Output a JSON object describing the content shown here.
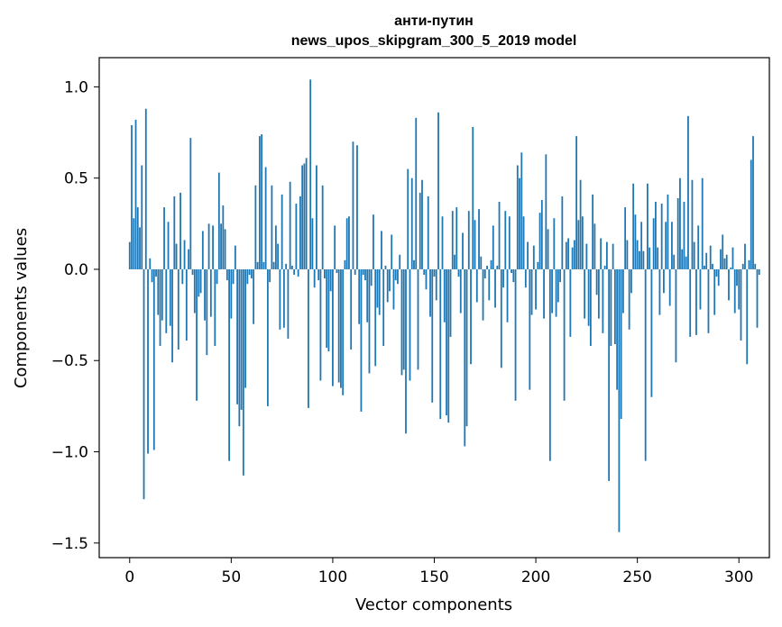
{
  "chart_data": {
    "type": "bar",
    "title_lines": [
      "анти-путин",
      "news_upos_skipgram_300_5_2019 model"
    ],
    "xlabel": "Vector components",
    "ylabel": "Components values",
    "xlim": [
      -15,
      315
    ],
    "ylim": [
      -1.58,
      1.16
    ],
    "x_ticks": [
      0,
      50,
      100,
      150,
      200,
      250,
      300
    ],
    "x_tick_labels": [
      "0",
      "50",
      "100",
      "150",
      "200",
      "250",
      "300"
    ],
    "y_ticks": [
      -1.5,
      -1.0,
      -0.5,
      0.0,
      0.5,
      1.0
    ],
    "y_tick_labels": [
      "−1.5",
      "−1.0",
      "−0.5",
      "0.0",
      "0.5",
      "1.0"
    ],
    "bar_color": "#1f77b4",
    "grid": false,
    "values": [
      0.15,
      0.79,
      0.28,
      0.82,
      0.34,
      0.23,
      0.57,
      -1.26,
      0.88,
      -1.01,
      0.06,
      -0.07,
      -0.99,
      -0.04,
      -0.25,
      -0.42,
      -0.28,
      0.34,
      -0.35,
      0.26,
      -0.31,
      -0.51,
      0.4,
      0.14,
      -0.44,
      0.42,
      -0.08,
      0.16,
      -0.39,
      0.11,
      0.72,
      -0.03,
      -0.24,
      -0.72,
      -0.15,
      -0.13,
      0.21,
      -0.28,
      -0.47,
      0.25,
      -0.26,
      0.24,
      -0.42,
      -0.08,
      0.53,
      0.25,
      0.35,
      0.22,
      -0.06,
      -1.05,
      -0.27,
      -0.08,
      0.13,
      -0.74,
      -0.86,
      -0.77,
      -1.13,
      -0.65,
      -0.08,
      -0.03,
      -0.05,
      -0.3,
      0.46,
      0.04,
      0.73,
      0.74,
      0.04,
      0.56,
      -0.75,
      -0.07,
      0.46,
      0.04,
      0.24,
      0.14,
      -0.33,
      0.41,
      -0.32,
      0.03,
      -0.38,
      0.48,
      0.02,
      -0.03,
      0.36,
      -0.04,
      0.4,
      0.57,
      0.58,
      0.61,
      -0.76,
      1.04,
      0.28,
      -0.1,
      0.57,
      -0.06,
      -0.61,
      0.46,
      -0.05,
      -0.43,
      -0.45,
      -0.12,
      -0.64,
      0.24,
      -0.02,
      -0.62,
      -0.65,
      -0.69,
      0.05,
      0.28,
      0.29,
      -0.44,
      0.7,
      -0.03,
      0.68,
      -0.3,
      -0.78,
      -0.03,
      -0.06,
      -0.29,
      -0.57,
      -0.09,
      0.3,
      -0.53,
      -0.21,
      -0.25,
      0.21,
      -0.42,
      0.02,
      -0.18,
      -0.12,
      0.19,
      -0.22,
      -0.06,
      -0.08,
      0.08,
      -0.58,
      -0.55,
      -0.9,
      0.55,
      -0.61,
      0.5,
      0.05,
      0.83,
      -0.55,
      0.42,
      0.49,
      -0.03,
      -0.11,
      0.4,
      -0.26,
      -0.73,
      -0.04,
      -0.17,
      0.86,
      -0.82,
      0.29,
      -0.29,
      -0.8,
      -0.84,
      -0.37,
      0.32,
      0.08,
      0.34,
      -0.04,
      -0.24,
      0.2,
      -0.97,
      -0.86,
      0.32,
      -0.52,
      0.78,
      0.27,
      -0.18,
      0.33,
      0.07,
      -0.28,
      -0.05,
      0.02,
      -0.17,
      0.05,
      0.24,
      -0.21,
      0.02,
      0.37,
      -0.54,
      -0.1,
      0.32,
      -0.29,
      0.29,
      -0.02,
      -0.07,
      -0.72,
      0.57,
      0.5,
      0.64,
      0.29,
      -0.1,
      0.15,
      -0.66,
      -0.25,
      0.13,
      -0.22,
      0.04,
      0.31,
      0.38,
      -0.27,
      0.63,
      0.22,
      -1.05,
      -0.24,
      0.28,
      -0.26,
      -0.18,
      -0.07,
      0.4,
      -0.72,
      0.15,
      0.17,
      -0.37,
      0.12,
      0.16,
      0.73,
      0.27,
      0.49,
      0.29,
      -0.27,
      0.14,
      -0.31,
      -0.42,
      0.41,
      0.25,
      -0.14,
      -0.27,
      0.17,
      -0.35,
      0.02,
      0.15,
      -1.16,
      -0.42,
      0.14,
      -0.41,
      -0.66,
      -1.44,
      -0.82,
      -0.24,
      0.34,
      0.16,
      -0.33,
      -0.13,
      0.47,
      0.3,
      0.16,
      0.1,
      0.26,
      0.1,
      -1.05,
      0.47,
      0.12,
      -0.7,
      0.28,
      0.37,
      0.12,
      -0.25,
      0.36,
      -0.13,
      0.26,
      0.41,
      -0.2,
      0.26,
      0.08,
      -0.51,
      0.39,
      0.5,
      0.11,
      0.37,
      0.07,
      0.84,
      -0.37,
      0.49,
      0.15,
      -0.36,
      0.24,
      -0.22,
      0.5,
      0.02,
      0.09,
      -0.35,
      0.13,
      0.03,
      -0.25,
      -0.04,
      -0.09,
      0.11,
      0.19,
      0.06,
      0.08,
      -0.17,
      0.01,
      0.12,
      -0.24,
      -0.09,
      -0.22,
      -0.39,
      0.03,
      0.14,
      -0.52,
      0.05,
      0.6,
      0.73,
      0.03,
      -0.32,
      -0.03
    ]
  }
}
